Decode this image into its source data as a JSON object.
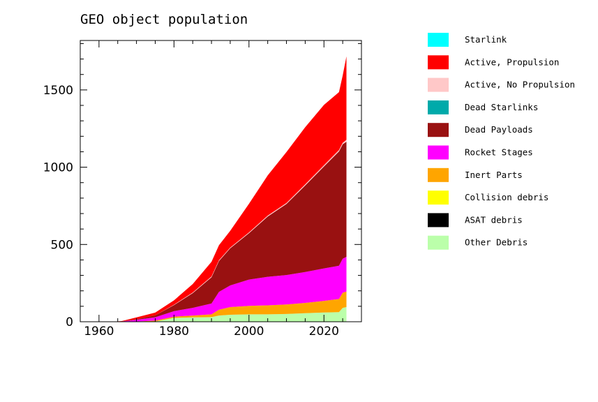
{
  "chart_data": {
    "type": "area",
    "stacked": true,
    "title": "GEO object population",
    "xlabel": "",
    "ylabel": "",
    "xlim": [
      1955,
      2030
    ],
    "ylim": [
      0,
      1820
    ],
    "xticks": [
      1960,
      1980,
      2000,
      2020
    ],
    "yticks": [
      0,
      500,
      1000,
      1500
    ],
    "grid": false,
    "legend_position": "right",
    "x": [
      1957,
      1963,
      1966,
      1970,
      1975,
      1980,
      1985,
      1990,
      1992,
      1995,
      2000,
      2005,
      2010,
      2015,
      2020,
      2024,
      2025,
      2026
    ],
    "series": [
      {
        "name": "Starlink",
        "color": "#00ffff",
        "values": [
          0,
          0,
          0,
          0,
          0,
          0,
          0,
          0,
          0,
          0,
          0,
          0,
          0,
          0,
          0,
          0,
          0,
          0
        ]
      },
      {
        "name": "Active, Propulsion",
        "color": "#ff0000",
        "values": [
          0,
          0,
          2,
          12,
          18,
          28,
          55,
          95,
          97,
          108,
          185,
          260,
          330,
          370,
          390,
          375,
          435,
          540
        ]
      },
      {
        "name": "Active, No Propulsion",
        "color": "#ffc8c8",
        "values": [
          0,
          0,
          0,
          0,
          0,
          2,
          4,
          5,
          5,
          5,
          5,
          6,
          6,
          7,
          8,
          9,
          10,
          12
        ]
      },
      {
        "name": "Dead Starlinks",
        "color": "#00aaaa",
        "values": [
          0,
          0,
          0,
          0,
          0,
          0,
          0,
          0,
          0,
          0,
          0,
          0,
          0,
          0,
          0,
          0,
          0,
          0
        ]
      },
      {
        "name": "Dead Payloads",
        "color": "#991111",
        "values": [
          0,
          0,
          0,
          4,
          12,
          40,
          95,
          170,
          200,
          240,
          300,
          390,
          460,
          560,
          660,
          740,
          740,
          745
        ]
      },
      {
        "name": "Rocket Stages",
        "color": "#ff00ff",
        "values": [
          0,
          0,
          2,
          10,
          22,
          35,
          50,
          70,
          115,
          140,
          170,
          185,
          190,
          200,
          210,
          215,
          220,
          225
        ]
      },
      {
        "name": "Inert Parts",
        "color": "#ffa500",
        "values": [
          0,
          0,
          0,
          2,
          5,
          8,
          12,
          18,
          38,
          50,
          55,
          58,
          62,
          67,
          75,
          85,
          98,
          100
        ]
      },
      {
        "name": "Collision debris",
        "color": "#ffff00",
        "values": [
          0,
          0,
          0,
          0,
          0,
          0,
          0,
          0,
          0,
          0,
          0,
          0,
          0,
          0,
          0,
          0,
          0,
          0
        ]
      },
      {
        "name": "ASAT debris",
        "color": "#000000",
        "values": [
          0,
          0,
          0,
          0,
          0,
          0,
          0,
          0,
          0,
          0,
          0,
          0,
          0,
          0,
          0,
          0,
          0,
          0
        ]
      },
      {
        "name": "Other Debris",
        "color": "#bbffaa",
        "values": [
          0,
          0,
          0,
          0,
          2,
          25,
          28,
          30,
          40,
          45,
          48,
          48,
          50,
          55,
          60,
          62,
          90,
          95
        ]
      }
    ]
  }
}
